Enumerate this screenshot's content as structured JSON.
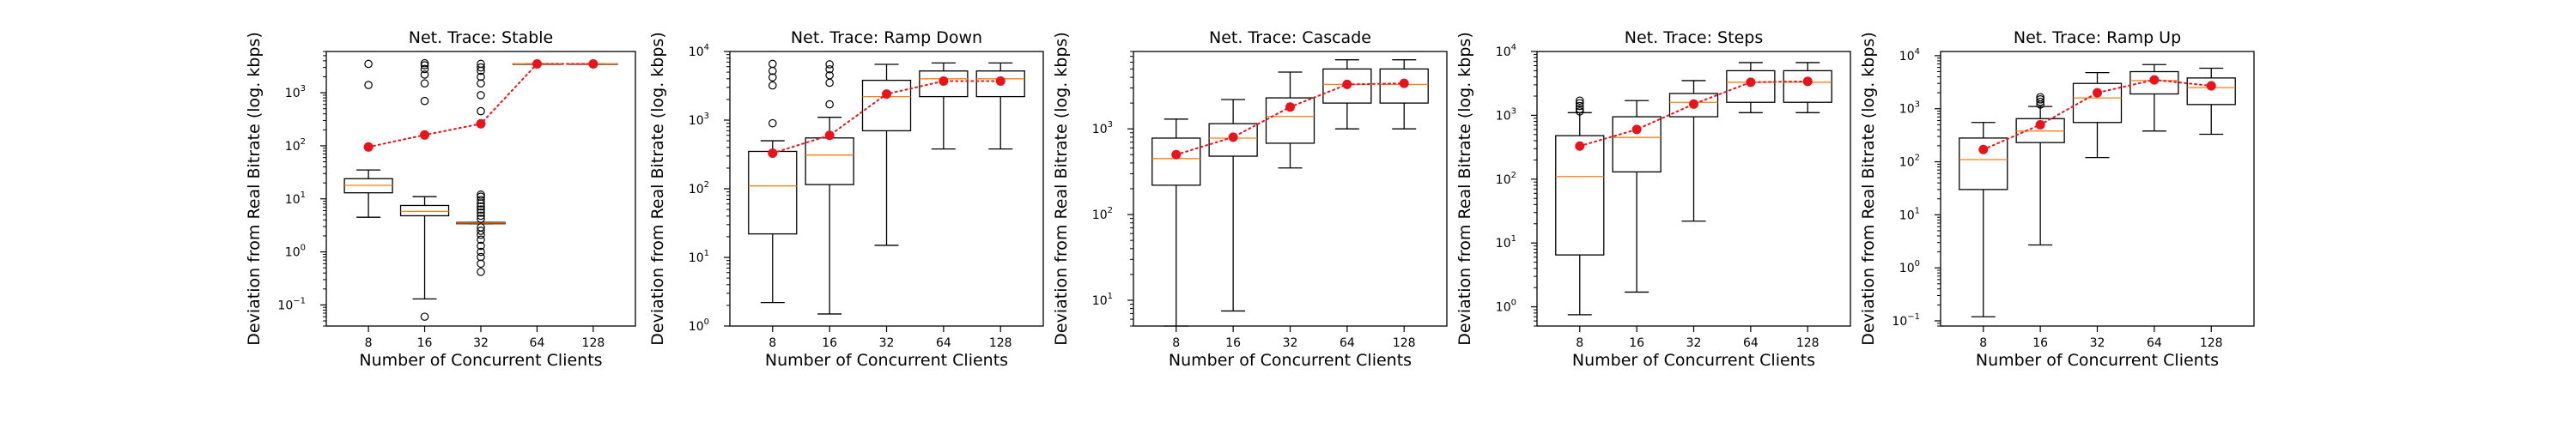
{
  "figure": {
    "xlabel": "Number of Concurrent Clients",
    "ylabel": "Deviation from Real Bitrate (log. kbps)"
  },
  "chart_data": [
    {
      "type": "box",
      "title": "Net. Trace: Stable",
      "xlabel": "Number of Concurrent Clients",
      "ylabel": "Deviation from Real Bitrate (log. kbps)",
      "yscale": "log",
      "ylim": [
        0.04,
        6000
      ],
      "yticks": [
        {
          "base": "10",
          "exp": "−1",
          "value": 0.1
        },
        {
          "base": "10",
          "exp": "0",
          "value": 1
        },
        {
          "base": "10",
          "exp": "1",
          "value": 10
        },
        {
          "base": "10",
          "exp": "2",
          "value": 100
        },
        {
          "base": "10",
          "exp": "3",
          "value": 1000
        }
      ],
      "categories": [
        "8",
        "16",
        "32",
        "64",
        "128"
      ],
      "boxes": [
        {
          "whislo": 4.5,
          "q1": 13,
          "med": 18,
          "q3": 24,
          "whishi": 35,
          "fliers": [
            1400,
            3500
          ]
        },
        {
          "whislo": 0.13,
          "q1": 4.8,
          "med": 5.8,
          "q3": 7.5,
          "whishi": 11,
          "fliers": [
            0.06,
            700,
            1500,
            2200,
            2800,
            3300,
            3600
          ]
        },
        {
          "whislo": 3.4,
          "q1": 3.4,
          "med": 3.5,
          "q3": 3.6,
          "whishi": 3.6,
          "fliers": [
            0.42,
            0.6,
            0.8,
            1.0,
            1.3,
            1.7,
            2.1,
            2.5,
            2.9,
            4.2,
            4.8,
            5.5,
            6.3,
            7.2,
            8.2,
            9.5,
            11,
            12,
            450,
            900,
            1500,
            2000,
            2600,
            3000,
            3500
          ]
        },
        {
          "whislo": 3500,
          "q1": 3500,
          "med": 3500,
          "q3": 3500,
          "whishi": 3500,
          "fliers": []
        },
        {
          "whislo": 3500,
          "q1": 3500,
          "med": 3500,
          "q3": 3500,
          "whishi": 3500,
          "fliers": []
        }
      ],
      "means": [
        95,
        160,
        260,
        3500,
        3500
      ]
    },
    {
      "type": "box",
      "title": "Net. Trace: Ramp Down",
      "xlabel": "Number of Concurrent Clients",
      "ylabel": "Deviation from Real Bitrate (log. kbps)",
      "yscale": "log",
      "ylim": [
        1,
        10000
      ],
      "yticks": [
        {
          "base": "10",
          "exp": "0",
          "value": 1
        },
        {
          "base": "10",
          "exp": "1",
          "value": 10
        },
        {
          "base": "10",
          "exp": "2",
          "value": 100
        },
        {
          "base": "10",
          "exp": "3",
          "value": 1000
        },
        {
          "base": "10",
          "exp": "4",
          "value": 10000
        }
      ],
      "categories": [
        "8",
        "16",
        "32",
        "64",
        "128"
      ],
      "boxes": [
        {
          "whislo": 2.2,
          "q1": 22,
          "med": 110,
          "q3": 350,
          "whishi": 500,
          "fliers": [
            900,
            3200,
            4200,
            5200,
            6600
          ]
        },
        {
          "whislo": 1.5,
          "q1": 115,
          "med": 310,
          "q3": 550,
          "whishi": 1100,
          "fliers": [
            1700,
            3500,
            4500,
            5500,
            6500
          ]
        },
        {
          "whislo": 15,
          "q1": 700,
          "med": 2200,
          "q3": 3800,
          "whishi": 6500,
          "fliers": []
        },
        {
          "whislo": 380,
          "q1": 2200,
          "med": 4000,
          "q3": 5200,
          "whishi": 6800,
          "fliers": []
        },
        {
          "whislo": 380,
          "q1": 2200,
          "med": 4000,
          "q3": 5200,
          "whishi": 6800,
          "fliers": []
        }
      ],
      "means": [
        330,
        600,
        2400,
        3700,
        3700
      ]
    },
    {
      "type": "box",
      "title": "Net. Trace: Cascade",
      "xlabel": "Number of Concurrent Clients",
      "ylabel": "Deviation from Real Bitrate (log. kbps)",
      "yscale": "log",
      "ylim": [
        5,
        8000
      ],
      "yticks": [
        {
          "base": "10",
          "exp": "1",
          "value": 10
        },
        {
          "base": "10",
          "exp": "2",
          "value": 100
        },
        {
          "base": "10",
          "exp": "3",
          "value": 1000
        }
      ],
      "categories": [
        "8",
        "16",
        "32",
        "64",
        "128"
      ],
      "boxes": [
        {
          "whislo": 5,
          "q1": 220,
          "med": 450,
          "q3": 780,
          "whishi": 1300,
          "fliers": []
        },
        {
          "whislo": 7.5,
          "q1": 480,
          "med": 780,
          "q3": 1150,
          "whishi": 2200,
          "fliers": []
        },
        {
          "whislo": 350,
          "q1": 680,
          "med": 1400,
          "q3": 2300,
          "whishi": 4600,
          "fliers": []
        },
        {
          "whislo": 1000,
          "q1": 2000,
          "med": 3300,
          "q3": 5000,
          "whishi": 6400,
          "fliers": []
        },
        {
          "whislo": 1000,
          "q1": 2000,
          "med": 3300,
          "q3": 5000,
          "whishi": 6400,
          "fliers": []
        }
      ],
      "means": [
        500,
        800,
        1800,
        3300,
        3400
      ]
    },
    {
      "type": "box",
      "title": "Net. Trace: Steps",
      "xlabel": "Number of Concurrent Clients",
      "ylabel": "Deviation from Real Bitrate (log. kbps)",
      "yscale": "log",
      "ylim": [
        0.5,
        10000
      ],
      "yticks": [
        {
          "base": "10",
          "exp": "0",
          "value": 1
        },
        {
          "base": "10",
          "exp": "1",
          "value": 10
        },
        {
          "base": "10",
          "exp": "2",
          "value": 100
        },
        {
          "base": "10",
          "exp": "3",
          "value": 1000
        },
        {
          "base": "10",
          "exp": "4",
          "value": 10000
        }
      ],
      "categories": [
        "8",
        "16",
        "32",
        "64",
        "128"
      ],
      "boxes": [
        {
          "whislo": 0.75,
          "q1": 6.5,
          "med": 110,
          "q3": 480,
          "whishi": 1100,
          "fliers": [
            1150,
            1250,
            1400,
            1550,
            1700
          ]
        },
        {
          "whislo": 1.7,
          "q1": 130,
          "med": 450,
          "q3": 950,
          "whishi": 1700,
          "fliers": []
        },
        {
          "whislo": 22,
          "q1": 950,
          "med": 1600,
          "q3": 2200,
          "whishi": 3500,
          "fliers": []
        },
        {
          "whislo": 1100,
          "q1": 1600,
          "med": 3300,
          "q3": 5000,
          "whishi": 6700,
          "fliers": []
        },
        {
          "whislo": 1100,
          "q1": 1600,
          "med": 3300,
          "q3": 5000,
          "whishi": 6700,
          "fliers": []
        }
      ],
      "means": [
        330,
        600,
        1500,
        3300,
        3400
      ]
    },
    {
      "type": "box",
      "title": "Net. Trace: Ramp Up",
      "xlabel": "Number of Concurrent Clients",
      "ylabel": "Deviation from Real Bitrate (log. kbps)",
      "yscale": "log",
      "ylim": [
        0.08,
        12000
      ],
      "yticks": [
        {
          "base": "10",
          "exp": "−1",
          "value": 0.1
        },
        {
          "base": "10",
          "exp": "0",
          "value": 1
        },
        {
          "base": "10",
          "exp": "1",
          "value": 10
        },
        {
          "base": "10",
          "exp": "2",
          "value": 100
        },
        {
          "base": "10",
          "exp": "3",
          "value": 1000
        },
        {
          "base": "10",
          "exp": "4",
          "value": 10000
        }
      ],
      "categories": [
        "8",
        "16",
        "32",
        "64",
        "128"
      ],
      "boxes": [
        {
          "whislo": 0.12,
          "q1": 30,
          "med": 110,
          "q3": 280,
          "whishi": 550,
          "fliers": []
        },
        {
          "whislo": 2.7,
          "q1": 230,
          "med": 380,
          "q3": 650,
          "whishi": 1100,
          "fliers": [
            1200,
            1350,
            1500,
            1650
          ]
        },
        {
          "whislo": 120,
          "q1": 550,
          "med": 1600,
          "q3": 3000,
          "whishi": 4800,
          "fliers": []
        },
        {
          "whislo": 380,
          "q1": 1900,
          "med": 3400,
          "q3": 5000,
          "whishi": 6800,
          "fliers": []
        },
        {
          "whislo": 330,
          "q1": 1200,
          "med": 2500,
          "q3": 3800,
          "whishi": 5800,
          "fliers": []
        }
      ],
      "means": [
        170,
        500,
        2000,
        3500,
        2700
      ]
    }
  ],
  "colors": {
    "box": "#000000",
    "median": "#ff7f0e",
    "mean": "#e8141c",
    "meanline": "#e8141c"
  }
}
